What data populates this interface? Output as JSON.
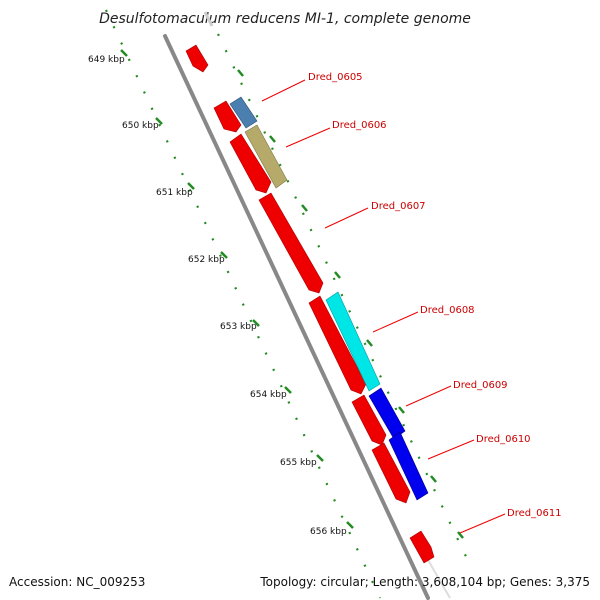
{
  "title": "Desulfotomaculum reducens MI-1, complete genome",
  "accession_text": "Accession: NC_009253",
  "summary_text": "Topology: circular; Length: 3,608,104 bp; Genes: 3,375",
  "kbp_labels": [
    "649 kbp",
    "650 kbp",
    "651 kbp",
    "652 kbp",
    "653 kbp",
    "654 kbp",
    "655 kbp",
    "656 kbp"
  ],
  "genes": [
    {
      "label": "Dred_0605",
      "color": "#4a7fb0"
    },
    {
      "label": "Dred_0606",
      "color": "#b5aa6a"
    },
    {
      "label": "Dred_0607",
      "color": "#ee0000"
    },
    {
      "label": "Dred_0608",
      "color": "#00e5e5"
    },
    {
      "label": "Dred_0609",
      "color": "#0000ee"
    },
    {
      "label": "Dred_0610",
      "color": "#0000ee"
    },
    {
      "label": "Dred_0611",
      "color": "#ee0000"
    }
  ],
  "colors": {
    "backbone": "#888888",
    "ticks": "#228b22",
    "label_line": "#ee0000",
    "reverse_gene": "#ee0000"
  }
}
